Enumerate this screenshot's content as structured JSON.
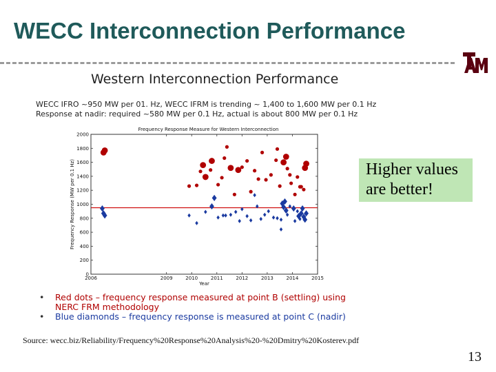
{
  "slide": {
    "title": "WECC Interconnection Performance",
    "panel_title": "Western Interconnection Performance",
    "desc_line1": "WECC IFRO ~950 MW per 01. Hz, WECC IFRM is trending ~ 1,400 to 1,600 MW per 0.1 Hz",
    "desc_line2": "Response at nadir: required ~580 MW per 0.1 Hz, actual is about 800 MW per 0.1 Hz",
    "callout_line1": "Higher values",
    "callout_line2": "are better!",
    "bullet1_line1": "Red dots – frequency response measured at point B (settling) using",
    "bullet1_line2": "NERC FRM methodology",
    "bullet2": "Blue diamonds – frequency response is measured at point C (nadir)",
    "bullet_symbol": "•",
    "source": "Source: wecc.biz/Reliability/Frequency%20Response%20Analysis%20-%20Dmitry%20Kosterev.pdf",
    "page_number": "13",
    "logo_letters": "ATM",
    "colors": {
      "title": "#1f5a5a",
      "red_series": "#b00000",
      "blue_series": "#1a3aa0",
      "threshold": "#cc0000",
      "callout_bg": "#bfe6b5",
      "logo": "#5a0010"
    }
  },
  "chart_data": {
    "type": "scatter",
    "title": "Frequency Response Measure for Western Interconnection",
    "xlabel": "Year",
    "ylabel": "Frequency Response (MW per 0.1 Hz)",
    "xlim": [
      2006,
      2015
    ],
    "ylim": [
      0,
      2000
    ],
    "xticks": [
      2006,
      2009,
      2010,
      2011,
      2012,
      2013,
      2014,
      2015
    ],
    "yticks": [
      0,
      200,
      400,
      600,
      800,
      1000,
      1200,
      1400,
      1600,
      1800,
      2000
    ],
    "grid": false,
    "threshold": {
      "value": 950,
      "label": "WECC IFRO"
    },
    "series": [
      {
        "name": "Point B (settling) - NERC FRM",
        "marker": "circle",
        "color": "#b00000",
        "points": [
          [
            2006.5,
            1740,
            1
          ],
          [
            2006.55,
            1770,
            1
          ],
          [
            2009.9,
            1260,
            0
          ],
          [
            2010.2,
            1270,
            0
          ],
          [
            2010.35,
            1470,
            0
          ],
          [
            2010.45,
            1560,
            1
          ],
          [
            2010.55,
            1390,
            1
          ],
          [
            2010.75,
            1490,
            0
          ],
          [
            2010.8,
            1620,
            1
          ],
          [
            2011.05,
            1280,
            0
          ],
          [
            2011.2,
            1380,
            0
          ],
          [
            2011.3,
            1660,
            0
          ],
          [
            2011.4,
            1820,
            0
          ],
          [
            2011.55,
            1520,
            1
          ],
          [
            2011.7,
            1140,
            0
          ],
          [
            2011.85,
            1490,
            1
          ],
          [
            2012.0,
            1530,
            0
          ],
          [
            2012.2,
            1620,
            0
          ],
          [
            2012.35,
            1180,
            0
          ],
          [
            2012.5,
            1480,
            0
          ],
          [
            2012.65,
            1360,
            0
          ],
          [
            2012.8,
            1740,
            0
          ],
          [
            2012.95,
            1350,
            0
          ],
          [
            2013.15,
            1420,
            0
          ],
          [
            2013.35,
            1630,
            0
          ],
          [
            2013.4,
            1790,
            0
          ],
          [
            2013.5,
            1260,
            0
          ],
          [
            2013.65,
            1600,
            1
          ],
          [
            2013.75,
            1680,
            1
          ],
          [
            2013.8,
            1510,
            0
          ],
          [
            2013.9,
            1420,
            0
          ],
          [
            2013.95,
            1300,
            0
          ],
          [
            2014.1,
            1140,
            0
          ],
          [
            2014.2,
            1390,
            0
          ],
          [
            2014.3,
            1250,
            0
          ],
          [
            2014.35,
            1250,
            0
          ],
          [
            2014.45,
            1210,
            0
          ],
          [
            2014.5,
            1520,
            1
          ],
          [
            2014.55,
            1580,
            1
          ]
        ]
      },
      {
        "name": "Point C (nadir)",
        "marker": "diamond",
        "color": "#1a3aa0",
        "points": [
          [
            2006.45,
            940,
            1
          ],
          [
            2006.5,
            870,
            1
          ],
          [
            2006.55,
            840,
            1
          ],
          [
            2009.9,
            840,
            0
          ],
          [
            2010.2,
            730,
            0
          ],
          [
            2010.55,
            890,
            0
          ],
          [
            2010.8,
            970,
            1
          ],
          [
            2010.9,
            1090,
            1
          ],
          [
            2011.05,
            810,
            0
          ],
          [
            2011.25,
            840,
            0
          ],
          [
            2011.35,
            840,
            0
          ],
          [
            2011.55,
            850,
            0
          ],
          [
            2011.75,
            890,
            0
          ],
          [
            2011.9,
            760,
            0
          ],
          [
            2012.0,
            930,
            0
          ],
          [
            2012.2,
            830,
            0
          ],
          [
            2012.35,
            770,
            0
          ],
          [
            2012.5,
            1130,
            0
          ],
          [
            2012.6,
            970,
            0
          ],
          [
            2012.75,
            790,
            0
          ],
          [
            2012.9,
            850,
            0
          ],
          [
            2013.05,
            900,
            0
          ],
          [
            2013.25,
            810,
            0
          ],
          [
            2013.4,
            800,
            0
          ],
          [
            2013.55,
            780,
            0
          ],
          [
            2013.55,
            640,
            0
          ],
          [
            2013.6,
            1010,
            1
          ],
          [
            2013.65,
            960,
            1
          ],
          [
            2013.7,
            1040,
            1
          ],
          [
            2013.75,
            910,
            1
          ],
          [
            2013.8,
            850,
            0
          ],
          [
            2013.9,
            970,
            0
          ],
          [
            2014.05,
            940,
            1
          ],
          [
            2014.1,
            760,
            0
          ],
          [
            2014.2,
            900,
            0
          ],
          [
            2014.25,
            830,
            1
          ],
          [
            2014.3,
            790,
            0
          ],
          [
            2014.35,
            870,
            1
          ],
          [
            2014.4,
            940,
            1
          ],
          [
            2014.45,
            820,
            1
          ],
          [
            2014.5,
            780,
            1
          ],
          [
            2014.55,
            870,
            1
          ]
        ]
      }
    ]
  }
}
